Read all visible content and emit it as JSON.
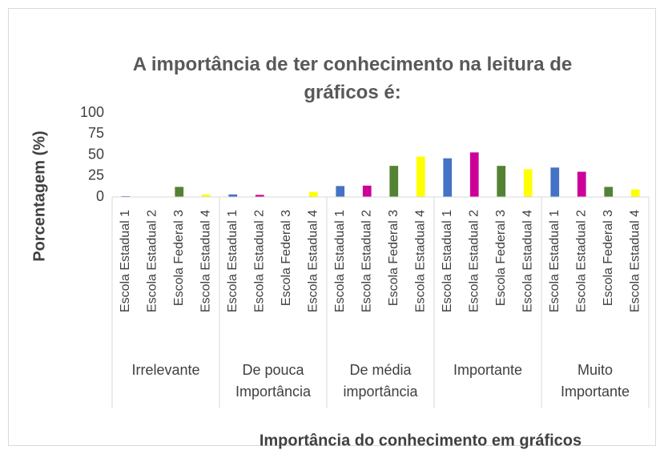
{
  "chart_data": {
    "type": "bar",
    "title": "A importância de ter conhecimento na leitura de gráficos é:",
    "y_label": "Porcentagem (%)",
    "x_label": "Importância  do conhecimento em gráficos",
    "categories": [
      "Irrelevante",
      "De pouca Importância",
      "De média importância",
      "Importante",
      "Muito Importante"
    ],
    "series": [
      {
        "name": "Escola Estadual 1",
        "color": "#4472c4",
        "values": [
          1,
          3,
          13,
          46,
          35
        ]
      },
      {
        "name": "Escola Estadual 2",
        "color": "#cc0099",
        "values": [
          0,
          2.5,
          13.5,
          53,
          30
        ]
      },
      {
        "name": "Escola Federal 3",
        "color": "#548235",
        "values": [
          12,
          0,
          37,
          37,
          12
        ]
      },
      {
        "name": "Escola Estadual 4",
        "color": "#ffff00",
        "values": [
          3,
          6,
          48,
          33,
          9
        ]
      }
    ],
    "ylim": [
      0,
      100
    ],
    "yticks": [
      0,
      25,
      50,
      75,
      100
    ],
    "grid": false
  }
}
